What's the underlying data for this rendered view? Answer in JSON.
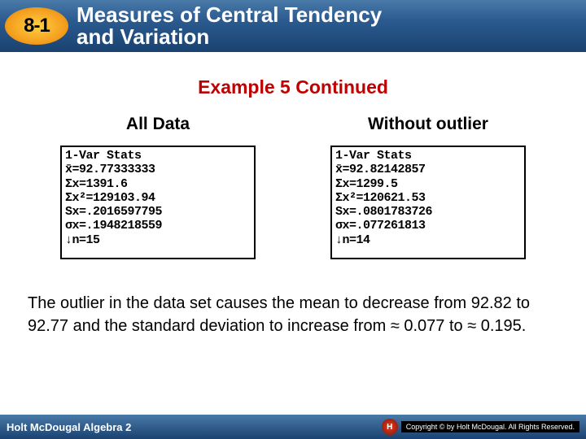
{
  "header": {
    "badge": "8-1",
    "title_line1": "Measures of Central Tendency",
    "title_line2": "and Variation"
  },
  "example_title": "Example 5 Continued",
  "col_left": {
    "title": "All Data",
    "screen": "1-Var Stats\nx̄=92.77333333\nΣx=1391.6\nΣx²=129103.94\nSx=.2016597795\nσx=.1948218559\n↓n=15"
  },
  "col_right": {
    "title": "Without outlier",
    "screen": "1-Var Stats\nx̄=92.82142857\nΣx=1299.5\nΣx²=120621.53\nSx=.0801783726\nσx=.077261813\n↓n=14"
  },
  "summary": "The outlier in the data set causes the mean to decrease from 92.82 to 92.77 and the standard deviation to increase from ≈ 0.077 to ≈ 0.195.",
  "footer": {
    "left": "Holt McDougal Algebra 2",
    "logo": "H",
    "right": "Copyright © by Holt McDougal. All Rights Reserved."
  },
  "colors": {
    "header_grad_top": "#4a7aa8",
    "header_grad_bottom": "#1a4270",
    "badge_top": "#ffd040",
    "badge_bottom": "#d88000",
    "example_title": "#c00000",
    "text": "#000000",
    "bg": "#ffffff"
  }
}
